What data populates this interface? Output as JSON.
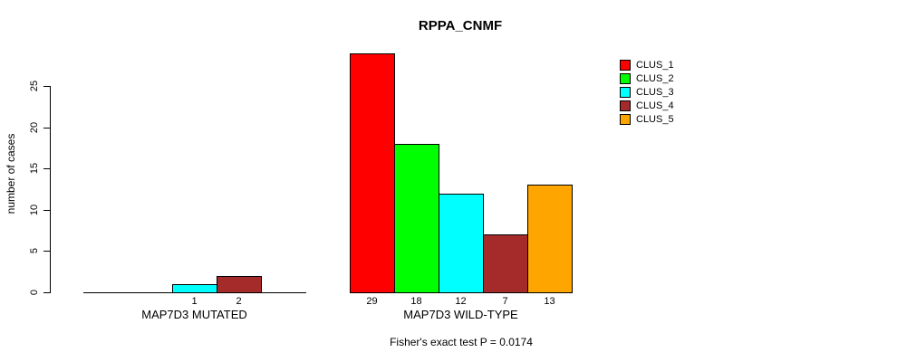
{
  "chart_data": {
    "type": "bar",
    "title": "RPPA_CNMF",
    "ylabel": "number of cases",
    "xlabel": "",
    "ylim": [
      0,
      25
    ],
    "yticks": [
      0,
      5,
      10,
      15,
      20,
      25
    ],
    "grid": false,
    "legend_position": "top-right",
    "series": [
      {
        "name": "CLUS_1",
        "color": "#FF0000"
      },
      {
        "name": "CLUS_2",
        "color": "#00FF00"
      },
      {
        "name": "CLUS_3",
        "color": "#00FFFF"
      },
      {
        "name": "CLUS_4",
        "color": "#A52A2A"
      },
      {
        "name": "CLUS_5",
        "color": "#FFA500"
      }
    ],
    "groups": [
      {
        "label": "MAP7D3 MUTATED",
        "values": [
          0,
          0,
          1,
          2,
          0
        ],
        "bar_labels": [
          "",
          "",
          "1",
          "2",
          ""
        ]
      },
      {
        "label": "MAP7D3 WILD-TYPE",
        "values": [
          29,
          18,
          12,
          7,
          13
        ],
        "bar_labels": [
          "29",
          "18",
          "12",
          "7",
          "13"
        ]
      }
    ],
    "annotation": "Fisher's exact test P = 0.0174"
  }
}
